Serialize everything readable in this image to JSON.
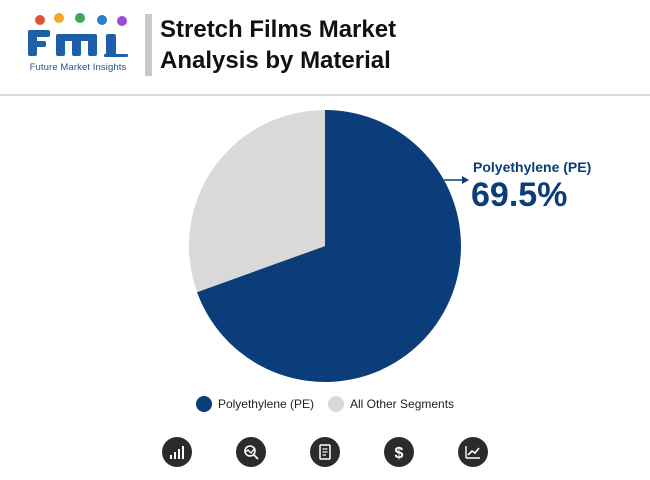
{
  "header": {
    "logo_caption": "Future Market Insights",
    "title_line1": "Stretch Films Market",
    "title_line2": "Analysis by Material"
  },
  "colors": {
    "primary": "#0b3d7a",
    "secondary": "#d9d9d9"
  },
  "chart_data": {
    "type": "pie",
    "slices": [
      {
        "label": "Polyethylene (PE)",
        "value": 69.5,
        "color": "#0b3d7a"
      },
      {
        "label": "All Other Segments",
        "value": 30.5,
        "color": "#d9d9d9"
      }
    ],
    "callout": {
      "label": "Polyethylene (PE)",
      "value": "69.5%"
    },
    "legend": [
      "Polyethylene (PE)",
      "All Other Segments"
    ],
    "legend_position": "bottom"
  },
  "footer_icons": [
    "growth-chart-icon",
    "analysis-icon",
    "report-icon",
    "dollar-icon",
    "trend-icon"
  ]
}
